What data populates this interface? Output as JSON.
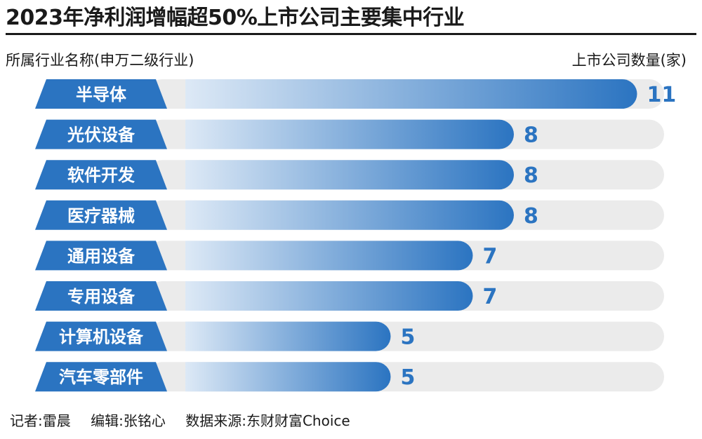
{
  "title": "2023年净利润增幅超50%上市公司主要集中行业",
  "header": {
    "left": "所属行业名称(申万二级行业)",
    "right": "上市公司数量(家)"
  },
  "footer": {
    "reporter": "记者:雷晨",
    "editor": "编辑:张铭心",
    "source": "数据来源:东财财富Choice"
  },
  "colors": {
    "accent": "#2b74c1",
    "label_bg": "#2b74c1",
    "track": "#ebebeb",
    "bar_start": "#dde9f6",
    "bar_end": "#2b74c1"
  },
  "chart_data": {
    "type": "bar",
    "orientation": "horizontal",
    "categories": [
      "半导体",
      "光伏设备",
      "软件开发",
      "医疗器械",
      "通用设备",
      "专用设备",
      "计算机设备",
      "汽车零部件"
    ],
    "values": [
      11,
      8,
      8,
      8,
      7,
      7,
      5,
      5
    ],
    "title": "2023年净利润增幅超50%上市公司主要集中行业",
    "xlabel": "上市公司数量(家)",
    "ylabel": "所属行业名称(申万二级行业)",
    "xlim": [
      0,
      12
    ],
    "grid": false,
    "legend": "none"
  }
}
